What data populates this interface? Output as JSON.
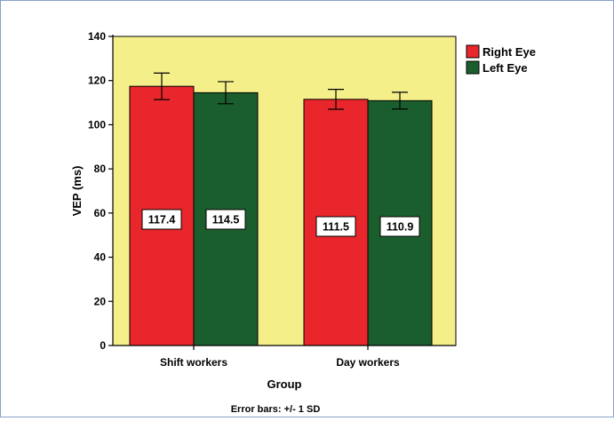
{
  "chart_data": {
    "type": "bar",
    "title": "",
    "xlabel": "Group",
    "ylabel": "VEP (ms)",
    "categories": [
      "Shift workers",
      "Day workers"
    ],
    "series": [
      {
        "name": "Right Eye",
        "values": [
          117.4,
          111.5
        ],
        "error": [
          6,
          4.5
        ],
        "value_labels": [
          "117.4",
          "111.5"
        ],
        "color": "#e8262b"
      },
      {
        "name": "Left Eye",
        "values": [
          114.5,
          110.9
        ],
        "error": [
          5,
          3.8
        ],
        "value_labels": [
          "114.5",
          "110.9"
        ],
        "color": "#1b5e2e"
      }
    ],
    "ylim": [
      0,
      140
    ],
    "yticks": [
      0,
      20,
      40,
      60,
      80,
      100,
      120,
      140
    ],
    "legend_position": "top-right",
    "grid": false,
    "plot_background": "#f5ef8a",
    "footnote": "Error bars: +/- 1 SD"
  }
}
